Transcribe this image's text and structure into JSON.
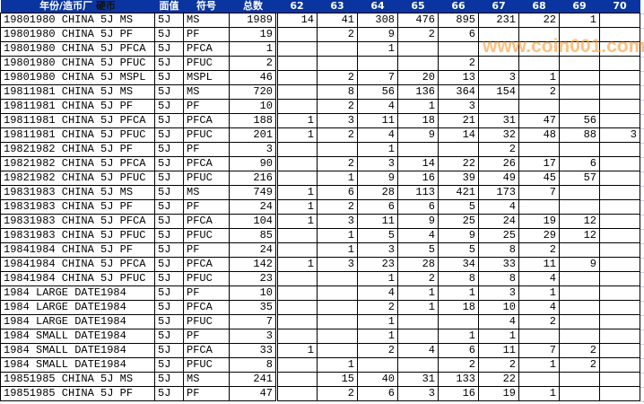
{
  "header": {
    "col0": "年份/造币厂",
    "col0b": "硬币",
    "denom": "面值",
    "symbol": "符号",
    "total": "总数",
    "grades": [
      "62",
      "63",
      "64",
      "65",
      "66",
      "67",
      "68",
      "69",
      "70"
    ]
  },
  "rows": [
    {
      "name": "19801980 CHINA 5J MS",
      "denom": "5J",
      "sym": "MS",
      "total": "1989",
      "g": [
        "14",
        "41",
        "308",
        "476",
        "895",
        "231",
        "22",
        "1",
        ""
      ]
    },
    {
      "name": "19801980 CHINA 5J PF",
      "denom": "5J",
      "sym": "PF",
      "total": "19",
      "g": [
        "",
        "2",
        "9",
        "2",
        "6",
        "",
        "",
        "",
        ""
      ]
    },
    {
      "name": "19801980 CHINA 5J PFCA",
      "denom": "5J",
      "sym": "PFCA",
      "total": "1",
      "g": [
        "",
        "",
        "1",
        "",
        "",
        "",
        "",
        "",
        ""
      ]
    },
    {
      "name": "19801980 CHINA 5J PFUC",
      "denom": "5J",
      "sym": "PFUC",
      "total": "2",
      "g": [
        "",
        "",
        "",
        "",
        "2",
        "",
        "",
        "",
        ""
      ]
    },
    {
      "name": "19801980 CHINA 5J MSPL",
      "denom": "5J",
      "sym": "MSPL",
      "total": "46",
      "g": [
        "",
        "2",
        "7",
        "20",
        "13",
        "3",
        "1",
        "",
        ""
      ]
    },
    {
      "name": "19811981 CHINA 5J MS",
      "denom": "5J",
      "sym": "MS",
      "total": "720",
      "g": [
        "",
        "8",
        "56",
        "136",
        "364",
        "154",
        "2",
        "",
        ""
      ]
    },
    {
      "name": "19811981 CHINA 5J PF",
      "denom": "5J",
      "sym": "PF",
      "total": "10",
      "g": [
        "",
        "2",
        "4",
        "1",
        "3",
        "",
        "",
        "",
        ""
      ]
    },
    {
      "name": "19811981 CHINA 5J PFCA",
      "denom": "5J",
      "sym": "PFCA",
      "total": "188",
      "g": [
        "1",
        "3",
        "11",
        "18",
        "21",
        "31",
        "47",
        "56",
        ""
      ]
    },
    {
      "name": "19811981 CHINA 5J PFUC",
      "denom": "5J",
      "sym": "PFUC",
      "total": "201",
      "g": [
        "1",
        "2",
        "4",
        "9",
        "14",
        "32",
        "48",
        "88",
        "3"
      ]
    },
    {
      "name": "19821982 CHINA 5J PF",
      "denom": "5J",
      "sym": "PF",
      "total": "3",
      "g": [
        "",
        "",
        "1",
        "",
        "",
        "2",
        "",
        "",
        ""
      ]
    },
    {
      "name": "19821982 CHINA 5J PFCA",
      "denom": "5J",
      "sym": "PFCA",
      "total": "90",
      "g": [
        "",
        "2",
        "3",
        "14",
        "22",
        "26",
        "17",
        "6",
        ""
      ]
    },
    {
      "name": "19821982 CHINA 5J PFUC",
      "denom": "5J",
      "sym": "PFUC",
      "total": "216",
      "g": [
        "",
        "1",
        "9",
        "16",
        "39",
        "49",
        "45",
        "57",
        ""
      ]
    },
    {
      "name": "19831983 CHINA 5J MS",
      "denom": "5J",
      "sym": "MS",
      "total": "749",
      "g": [
        "1",
        "6",
        "28",
        "113",
        "421",
        "173",
        "7",
        "",
        ""
      ]
    },
    {
      "name": "19831983 CHINA 5J PF",
      "denom": "5J",
      "sym": "PF",
      "total": "24",
      "g": [
        "1",
        "2",
        "6",
        "6",
        "5",
        "4",
        "",
        "",
        ""
      ]
    },
    {
      "name": "19831983 CHINA 5J PFCA",
      "denom": "5J",
      "sym": "PFCA",
      "total": "104",
      "g": [
        "1",
        "3",
        "11",
        "9",
        "25",
        "24",
        "19",
        "12",
        ""
      ]
    },
    {
      "name": "19831983 CHINA 5J PFUC",
      "denom": "5J",
      "sym": "PFUC",
      "total": "85",
      "g": [
        "",
        "1",
        "5",
        "4",
        "9",
        "25",
        "29",
        "12",
        ""
      ]
    },
    {
      "name": "19841984 CHINA 5J PF",
      "denom": "5J",
      "sym": "PF",
      "total": "24",
      "g": [
        "",
        "1",
        "3",
        "5",
        "5",
        "8",
        "2",
        "",
        ""
      ]
    },
    {
      "name": "19841984 CHINA 5J PFCA",
      "denom": "5J",
      "sym": "PFCA",
      "total": "142",
      "g": [
        "1",
        "3",
        "23",
        "28",
        "34",
        "33",
        "11",
        "9",
        ""
      ]
    },
    {
      "name": "19841984 CHINA 5J PFUC",
      "denom": "5J",
      "sym": "PFUC",
      "total": "23",
      "g": [
        "",
        "",
        "1",
        "2",
        "8",
        "8",
        "4",
        "",
        ""
      ]
    },
    {
      "name": "1984 LARGE DATE1984",
      "denom": "5J",
      "sym": "PF",
      "total": "10",
      "g": [
        "",
        "",
        "4",
        "1",
        "1",
        "3",
        "1",
        "",
        ""
      ]
    },
    {
      "name": "1984 LARGE DATE1984",
      "denom": "5J",
      "sym": "PFCA",
      "total": "35",
      "g": [
        "",
        "",
        "2",
        "1",
        "18",
        "10",
        "4",
        "",
        ""
      ]
    },
    {
      "name": "1984 LARGE DATE1984",
      "denom": "5J",
      "sym": "PFUC",
      "total": "7",
      "g": [
        "",
        "",
        "1",
        "",
        "",
        "4",
        "2",
        "",
        ""
      ]
    },
    {
      "name": "1984 SMALL DATE1984",
      "denom": "5J",
      "sym": "PF",
      "total": "3",
      "g": [
        "",
        "",
        "1",
        "",
        "1",
        "1",
        "",
        "",
        ""
      ]
    },
    {
      "name": "1984 SMALL DATE1984",
      "denom": "5J",
      "sym": "PFCA",
      "total": "33",
      "g": [
        "1",
        "",
        "2",
        "4",
        "6",
        "11",
        "7",
        "2",
        ""
      ]
    },
    {
      "name": "1984 SMALL DATE1984",
      "denom": "5J",
      "sym": "PFUC",
      "total": "8",
      "g": [
        "",
        "1",
        "",
        "",
        "2",
        "2",
        "1",
        "2",
        ""
      ]
    },
    {
      "name": "19851985 CHINA 5J MS",
      "denom": "5J",
      "sym": "MS",
      "total": "241",
      "g": [
        "",
        "15",
        "40",
        "31",
        "133",
        "22",
        "",
        "",
        ""
      ]
    },
    {
      "name": "19851985 CHINA 5J PF",
      "denom": "5J",
      "sym": "PF",
      "total": "47",
      "g": [
        "",
        "2",
        "6",
        "3",
        "16",
        "19",
        "1",
        "",
        ""
      ]
    }
  ],
  "watermark": "www.coin001.com",
  "colors": {
    "header_bg": "#0a35a0",
    "watermark": "#ff9628"
  }
}
